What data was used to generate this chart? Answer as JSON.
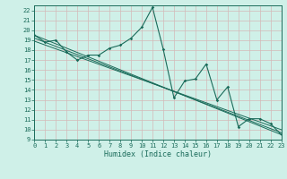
{
  "title": "",
  "xlabel": "Humidex (Indice chaleur)",
  "bg_color": "#cff0e8",
  "grid_color": "#d4b8b8",
  "line_color": "#1a6b5a",
  "xlim": [
    0,
    23
  ],
  "ylim": [
    9,
    22.5
  ],
  "xticks": [
    0,
    1,
    2,
    3,
    4,
    5,
    6,
    7,
    8,
    9,
    10,
    11,
    12,
    13,
    14,
    15,
    16,
    17,
    18,
    19,
    20,
    21,
    22,
    23
  ],
  "yticks": [
    9,
    10,
    11,
    12,
    13,
    14,
    15,
    16,
    17,
    18,
    19,
    20,
    21,
    22
  ],
  "series_main": {
    "x": [
      0,
      1,
      2,
      3,
      4,
      5,
      6,
      7,
      8,
      9,
      10,
      11,
      12,
      13,
      14,
      15,
      16,
      17,
      18,
      19,
      20,
      21,
      22,
      23
    ],
    "y": [
      19.5,
      18.8,
      19.0,
      17.8,
      17.0,
      17.5,
      17.5,
      18.2,
      18.5,
      19.2,
      20.3,
      22.3,
      18.1,
      13.2,
      14.9,
      15.1,
      16.6,
      13.0,
      14.3,
      10.3,
      11.1,
      11.1,
      10.6,
      9.5
    ]
  },
  "series_diag1": {
    "x": [
      0,
      23
    ],
    "y": [
      19.5,
      9.5
    ]
  },
  "series_diag2": {
    "x": [
      0,
      23
    ],
    "y": [
      19.2,
      9.7
    ]
  },
  "series_diag3": {
    "x": [
      0,
      23
    ],
    "y": [
      18.9,
      10.0
    ]
  },
  "font_color": "#1a6b5a",
  "xlabel_fontsize": 6,
  "tick_fontsize": 5
}
